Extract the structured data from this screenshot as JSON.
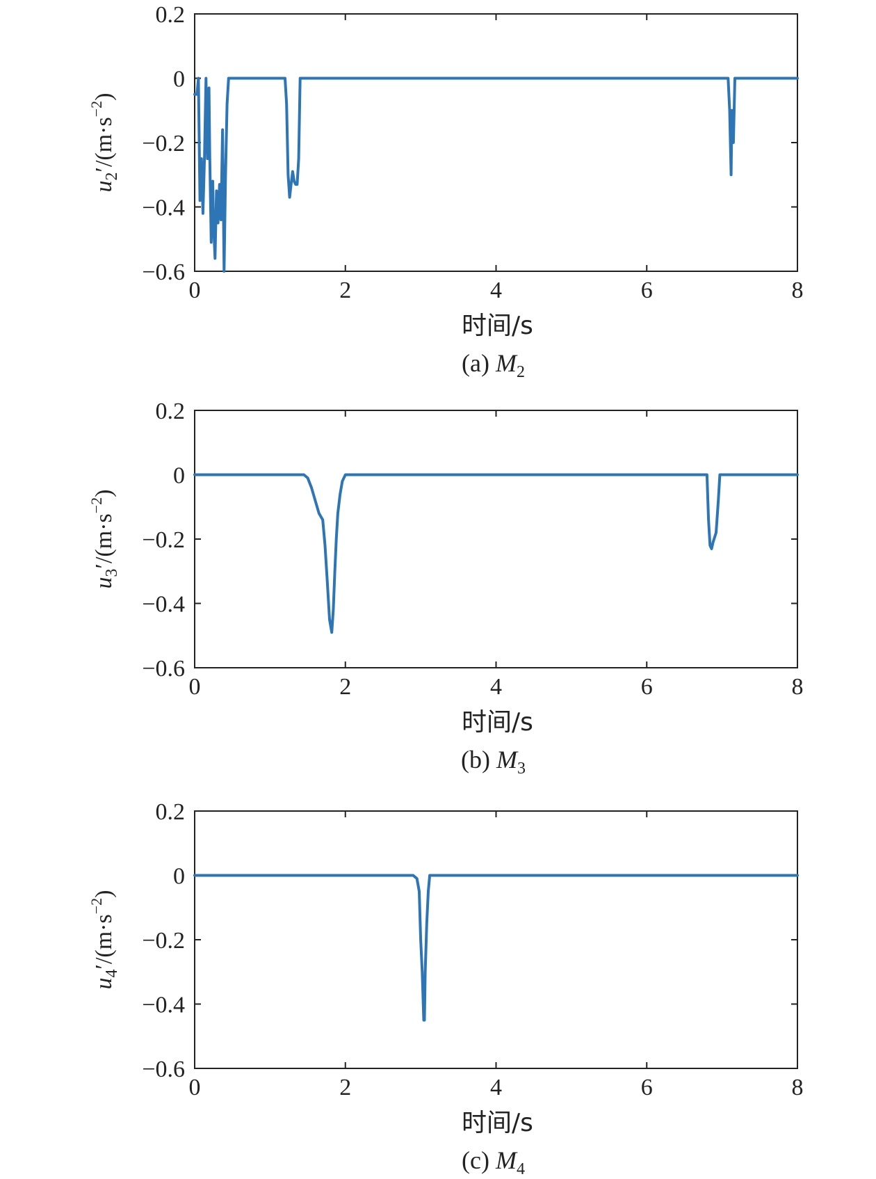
{
  "chart_data": [
    {
      "type": "line",
      "panel": "a",
      "caption": "(a) M",
      "caption_sub": "2",
      "xlabel": "时间/s",
      "ylabel_var": "u",
      "ylabel_sub": "2",
      "ylabel_rest": "′/(m·s",
      "ylabel_exp": "−2",
      "ylabel_close": ")",
      "xlim": [
        0,
        8
      ],
      "ylim": [
        -0.6,
        0.2
      ],
      "xticks": [
        0,
        2,
        4,
        6,
        8
      ],
      "xtick_labels": [
        "0",
        "2",
        "4",
        "6",
        "8"
      ],
      "yticks": [
        0.2,
        0,
        -0.2,
        -0.4,
        -0.6
      ],
      "ytick_labels": [
        "0.2",
        "0",
        "−0.2",
        "−0.4",
        "−0.6"
      ],
      "color": "#2e75b6",
      "series": [
        {
          "x": [
            0,
            0.03,
            0.05,
            0.07,
            0.09,
            0.11,
            0.13,
            0.15,
            0.17,
            0.19,
            0.2,
            0.22,
            0.24,
            0.25,
            0.27,
            0.29,
            0.31,
            0.33,
            0.35,
            0.37,
            0.39,
            0.41,
            0.43,
            0.45,
            0.47,
            0.49,
            0.5,
            0.52,
            0.54,
            0.56,
            0.6,
            1.2,
            1.22,
            1.24,
            1.26,
            1.28,
            1.3,
            1.32,
            1.34,
            1.36,
            1.38,
            1.4,
            1.42,
            1.44,
            1.46,
            1.48,
            1.5,
            7.08,
            7.1,
            7.12,
            7.13,
            7.15,
            7.17,
            7.19,
            8
          ],
          "y": [
            -0.05,
            -0.05,
            0,
            -0.38,
            -0.25,
            -0.42,
            -0.25,
            0,
            -0.25,
            -0.03,
            -0.24,
            -0.51,
            -0.32,
            -0.45,
            -0.56,
            -0.35,
            -0.45,
            -0.33,
            -0.44,
            -0.16,
            -0.6,
            -0.3,
            -0.08,
            0,
            0,
            0,
            0,
            0,
            0,
            0,
            0,
            0,
            -0.08,
            -0.3,
            -0.37,
            -0.33,
            -0.29,
            -0.32,
            -0.33,
            -0.33,
            -0.25,
            0,
            0,
            0,
            0,
            0,
            0,
            0,
            -0.1,
            -0.3,
            -0.1,
            -0.2,
            0,
            0,
            0
          ]
        }
      ]
    },
    {
      "type": "line",
      "panel": "b",
      "caption": "(b) M",
      "caption_sub": "3",
      "xlabel": "时间/s",
      "ylabel_var": "u",
      "ylabel_sub": "3",
      "ylabel_rest": "′/(m·s",
      "ylabel_exp": "−2",
      "ylabel_close": ")",
      "xlim": [
        0,
        8
      ],
      "ylim": [
        -0.6,
        0.2
      ],
      "xticks": [
        0,
        2,
        4,
        6,
        8
      ],
      "xtick_labels": [
        "0",
        "2",
        "4",
        "6",
        "8"
      ],
      "yticks": [
        0.2,
        0,
        -0.2,
        -0.4,
        -0.6
      ],
      "ytick_labels": [
        "0.2",
        "0",
        "−0.2",
        "−0.4",
        "−0.6"
      ],
      "color": "#2e75b6",
      "series": [
        {
          "x": [
            0,
            1.45,
            1.5,
            1.55,
            1.6,
            1.65,
            1.7,
            1.73,
            1.76,
            1.79,
            1.82,
            1.84,
            1.86,
            1.88,
            1.9,
            1.93,
            1.96,
            2.0,
            2.05,
            6.8,
            6.82,
            6.84,
            6.86,
            6.88,
            6.92,
            6.95,
            6.97,
            8
          ],
          "y": [
            0,
            0,
            -0.01,
            -0.04,
            -0.08,
            -0.12,
            -0.14,
            -0.22,
            -0.33,
            -0.45,
            -0.49,
            -0.42,
            -0.3,
            -0.2,
            -0.12,
            -0.06,
            -0.02,
            0,
            0,
            0,
            -0.14,
            -0.22,
            -0.23,
            -0.21,
            -0.18,
            -0.08,
            0,
            0
          ]
        }
      ]
    },
    {
      "type": "line",
      "panel": "c",
      "caption": "(c) M",
      "caption_sub": "4",
      "xlabel": "时间/s",
      "ylabel_var": "u",
      "ylabel_sub": "4",
      "ylabel_rest": "′/(m·s",
      "ylabel_exp": "−2",
      "ylabel_close": ")",
      "xlim": [
        0,
        8
      ],
      "ylim": [
        -0.6,
        0.2
      ],
      "xticks": [
        0,
        2,
        4,
        6,
        8
      ],
      "xtick_labels": [
        "0",
        "2",
        "4",
        "6",
        "8"
      ],
      "yticks": [
        0.2,
        0,
        -0.2,
        -0.4,
        -0.6
      ],
      "ytick_labels": [
        "0.2",
        "0",
        "−0.2",
        "−0.4",
        "−0.6"
      ],
      "color": "#2e75b6",
      "series": [
        {
          "x": [
            0,
            2.9,
            2.95,
            2.98,
            3.0,
            3.02,
            3.04,
            3.05,
            3.06,
            3.08,
            3.1,
            3.12,
            8
          ],
          "y": [
            0,
            0,
            -0.01,
            -0.05,
            -0.2,
            -0.3,
            -0.45,
            -0.45,
            -0.3,
            -0.15,
            -0.05,
            0,
            0
          ]
        }
      ]
    }
  ]
}
